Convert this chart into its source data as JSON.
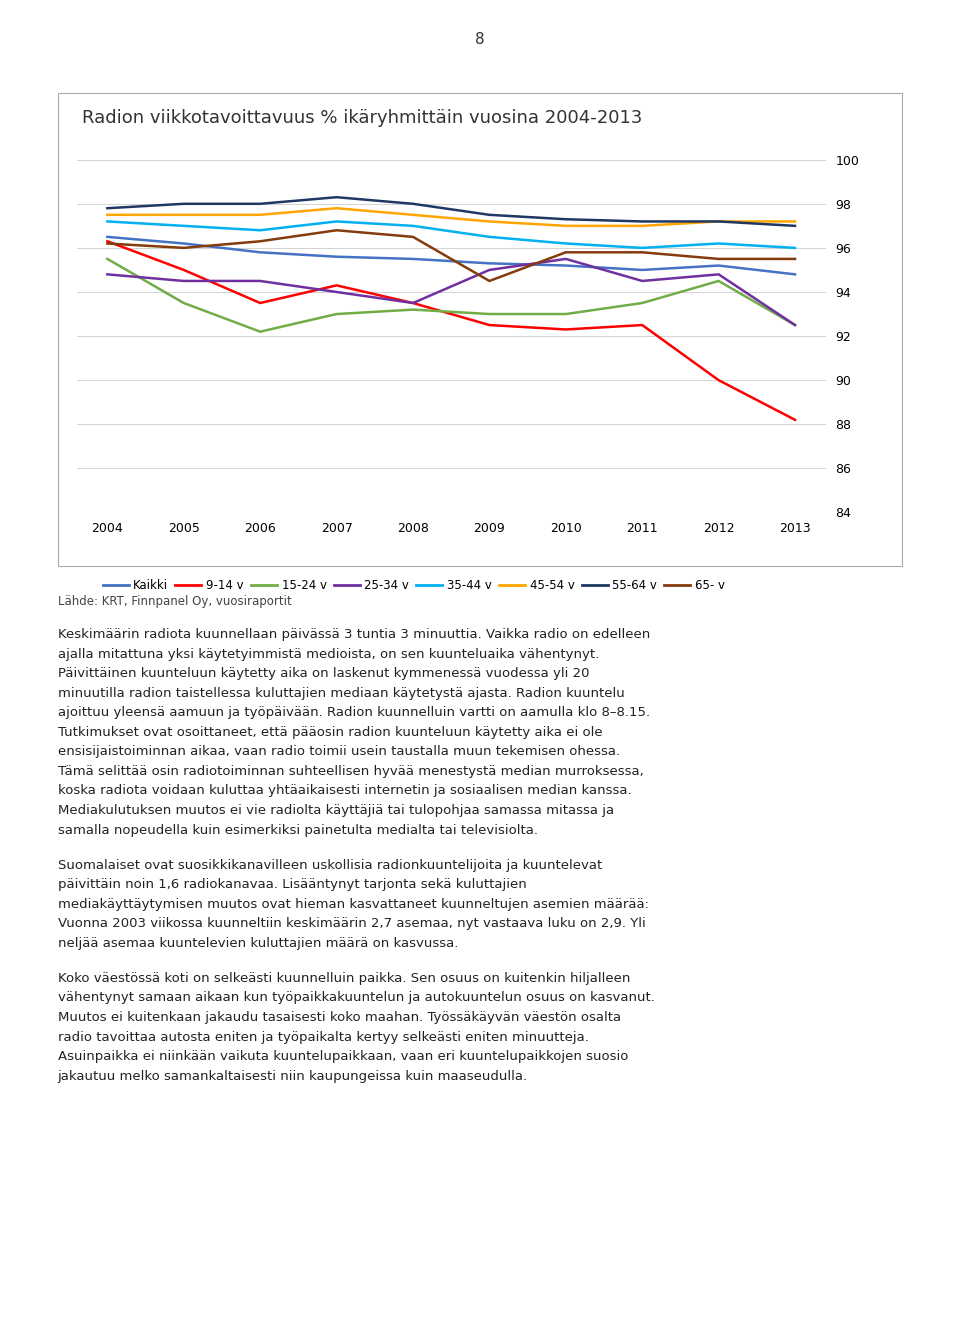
{
  "title": "Radion viikkotavoittavuus % ikäryhmittäin vuosina 2004-2013",
  "page_number": "8",
  "years": [
    2004,
    2005,
    2006,
    2007,
    2008,
    2009,
    2010,
    2011,
    2012,
    2013
  ],
  "series": [
    {
      "label": "Kaikki",
      "color": "#4472C4",
      "values": [
        96.5,
        96.2,
        95.8,
        95.6,
        95.5,
        95.3,
        95.2,
        95.0,
        95.2,
        94.8
      ]
    },
    {
      "label": "9-14 v",
      "color": "#FF0000",
      "values": [
        96.3,
        95.0,
        93.5,
        94.3,
        93.5,
        92.5,
        92.3,
        92.5,
        90.0,
        88.2
      ]
    },
    {
      "label": "15-24 v",
      "color": "#70AD47",
      "values": [
        95.5,
        93.5,
        92.2,
        93.0,
        93.2,
        93.0,
        93.0,
        93.5,
        94.5,
        92.5
      ]
    },
    {
      "label": "25-34 v",
      "color": "#7030A0",
      "values": [
        94.8,
        94.5,
        94.5,
        94.0,
        93.5,
        95.0,
        95.5,
        94.5,
        94.8,
        92.5
      ]
    },
    {
      "label": "35-44 v",
      "color": "#00B0F0",
      "values": [
        97.2,
        97.0,
        96.8,
        97.2,
        97.0,
        96.5,
        96.2,
        96.0,
        96.2,
        96.0
      ]
    },
    {
      "label": "45-54 v",
      "color": "#FFA500",
      "values": [
        97.5,
        97.5,
        97.5,
        97.8,
        97.5,
        97.2,
        97.0,
        97.0,
        97.2,
        97.2
      ]
    },
    {
      "label": "55-64 v",
      "color": "#1F3864",
      "values": [
        97.8,
        98.0,
        98.0,
        98.3,
        98.0,
        97.5,
        97.3,
        97.2,
        97.2,
        97.0
      ]
    },
    {
      "label": "65- v",
      "color": "#843C0C",
      "values": [
        96.2,
        96.0,
        96.3,
        96.8,
        96.5,
        94.5,
        95.8,
        95.8,
        95.5,
        95.5
      ]
    }
  ],
  "ylim": [
    84,
    100
  ],
  "yticks": [
    84,
    86,
    88,
    90,
    92,
    94,
    96,
    98,
    100
  ],
  "source_text": "Lähde: KRT, Finnpanel Oy, vuosiraportit",
  "para1": "Keskimäärin radiota kuunnellaan päivässä 3 tuntia 3 minuuttia. Vaikka radio on edelleen ajalla mitattuna yksi käytetyimmistä medioista, on sen kuunteluaika vähentynyt. Päivittäinen kuunteluun käytetty aika on laskenut kymmenässä vuodessa yli 20 minuutilla radion taistellessa kuluttajien mediaan käytetystä ajasta. Radion kuuntelu ajoittuu yleensä aamuun ja työpäivään. Radion kuunnelluin vartti on aamulla klo 8–8.15. Tutkimukset ovat osoittaneet, että pääosin radion kuunteluun käytetty aika ei ole ensisijaistoiminnan aikaa, vaan radio toimii usein taustalla muun tekemisen ohessa. Tämä selittää osin radiotoiminnan suhteellisen hyvää menestystä median murroksessa, koska radiota voidaan kuluttaa yhtäaikaisesti internetin ja sosiaalisen median kanssa. Mediakulutuksen muutos ei vie radiolta käyttäjiä tai tulopohjaa samassa mitassa ja samalla nopeudella kuin esimerkiksi painetulta medialta tai televisiolta.",
  "para2": "Suomalaiset ovat suosikkikanavilleen uskollisia radionkuuntelijoita ja kuuntelevat päivittäin noin 1,6 radiokanavaa. Lisääntynyt tarjonta sekä kuluttajien mediakäyttäytymisen muutos ovat hieman kasvattaneet kuunneltujen asemien määrää: Vuonna 2003 viikossa kuunneltiin keskimäärin 2,7 asemaa, nyt vastaava luku on 2,9. Yli neljää asemaa kuuntelevien kuluttajien määrä on kasvussa.",
  "para3": "Koko väestössä koti on selkeästi kuunnelluin paikka. Sen osuus on kuitenkin hiljalleen vähentynyt samaan aikaan kun työpaikkakuuntelun ja autokuuntelun osuus on kasvanut. Muutos ei kuitenkaan jakaudu tasaisesti koko maahan. Työssäkäyvän väestön osalta radio tavoittaa autosta eniten ja työpaikalta kertyy selkeästi eniten minuutteja. Asuinpaikka ei niinkään vaikuta kuuntelupaikkaan, vaan eri kuuntelupaikkojen suosio jakautuu melko samankaltaisesti niin kaupungeissa kuin maaseudulla."
}
